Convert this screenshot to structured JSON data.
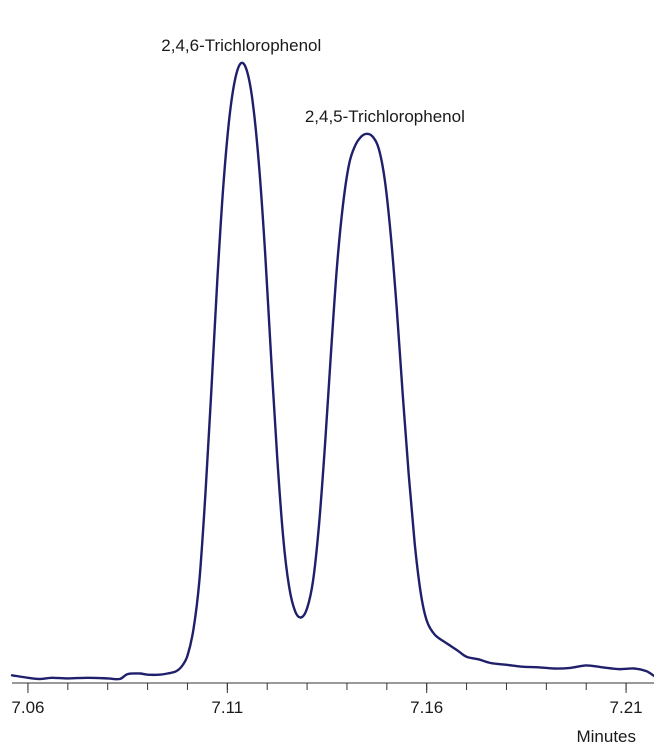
{
  "chart_data": {
    "type": "line",
    "title": "",
    "xlabel": "Minutes",
    "ylabel": "",
    "xlim": [
      7.056,
      7.217
    ],
    "ylim": [
      0,
      100
    ],
    "grid": false,
    "legend": "none",
    "x_ticks": [
      "7.06",
      "7.11",
      "7.16",
      "7.21"
    ],
    "x_tick_values": [
      7.06,
      7.11,
      7.16,
      7.21
    ],
    "minor_tick_step": 0.01,
    "annotations": [
      {
        "text": "2,4,6-Trichlorophenol",
        "x": 7.1135,
        "y": 100
      },
      {
        "text": "2,4,5-Trichlorophenol",
        "x": 7.1495,
        "y": 88.5
      }
    ],
    "series": [
      {
        "color": "#1f1f6b",
        "points": [
          [
            7.056,
            0.6
          ],
          [
            7.06,
            0.2
          ],
          [
            7.063,
            0.0
          ],
          [
            7.066,
            0.2
          ],
          [
            7.07,
            0.1
          ],
          [
            7.075,
            0.2
          ],
          [
            7.08,
            0.1
          ],
          [
            7.083,
            0.0
          ],
          [
            7.085,
            0.8
          ],
          [
            7.088,
            0.9
          ],
          [
            7.09,
            0.7
          ],
          [
            7.093,
            0.7
          ],
          [
            7.095,
            0.9
          ],
          [
            7.097,
            1.2
          ],
          [
            7.0985,
            2.0
          ],
          [
            7.1,
            3.8
          ],
          [
            7.1015,
            8.0
          ],
          [
            7.103,
            16.0
          ],
          [
            7.1045,
            30.0
          ],
          [
            7.106,
            47.0
          ],
          [
            7.1075,
            65.0
          ],
          [
            7.109,
            80.0
          ],
          [
            7.1105,
            91.0
          ],
          [
            7.112,
            97.5
          ],
          [
            7.1135,
            100.0
          ],
          [
            7.115,
            98.5
          ],
          [
            7.1165,
            93.0
          ],
          [
            7.118,
            83.0
          ],
          [
            7.1195,
            69.0
          ],
          [
            7.121,
            52.0
          ],
          [
            7.1225,
            36.0
          ],
          [
            7.124,
            23.0
          ],
          [
            7.1255,
            15.0
          ],
          [
            7.127,
            11.0
          ],
          [
            7.1285,
            10.0
          ],
          [
            7.13,
            11.5
          ],
          [
            7.1315,
            16.0
          ],
          [
            7.133,
            25.0
          ],
          [
            7.1345,
            38.0
          ],
          [
            7.136,
            53.0
          ],
          [
            7.1375,
            67.0
          ],
          [
            7.139,
            77.0
          ],
          [
            7.1405,
            83.5
          ],
          [
            7.142,
            86.5
          ],
          [
            7.1435,
            88.0
          ],
          [
            7.145,
            88.5
          ],
          [
            7.1465,
            88.0
          ],
          [
            7.148,
            86.0
          ],
          [
            7.1495,
            81.0
          ],
          [
            7.151,
            72.0
          ],
          [
            7.1525,
            60.0
          ],
          [
            7.154,
            46.0
          ],
          [
            7.1555,
            33.0
          ],
          [
            7.157,
            22.0
          ],
          [
            7.1585,
            14.0
          ],
          [
            7.16,
            9.5
          ],
          [
            7.162,
            7.2
          ],
          [
            7.165,
            5.8
          ],
          [
            7.168,
            4.5
          ],
          [
            7.17,
            3.6
          ],
          [
            7.173,
            3.2
          ],
          [
            7.176,
            2.6
          ],
          [
            7.18,
            2.3
          ],
          [
            7.184,
            2.0
          ],
          [
            7.188,
            1.9
          ],
          [
            7.192,
            1.7
          ],
          [
            7.196,
            1.8
          ],
          [
            7.2,
            2.2
          ],
          [
            7.204,
            1.9
          ],
          [
            7.208,
            1.6
          ],
          [
            7.212,
            1.7
          ],
          [
            7.215,
            1.3
          ],
          [
            7.217,
            0.5
          ]
        ]
      }
    ]
  }
}
